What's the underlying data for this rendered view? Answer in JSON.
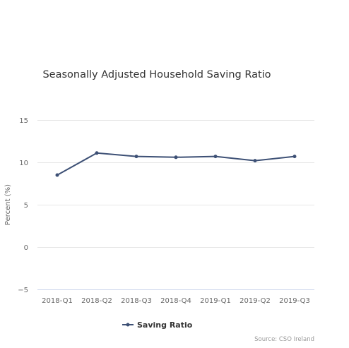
{
  "chart_data": {
    "type": "line",
    "title": "Seasonally Adjusted Household Saving Ratio",
    "xlabel": "",
    "ylabel": "Percent (%)",
    "categories": [
      "2018-Q1",
      "2018-Q2",
      "2018-Q3",
      "2018-Q4",
      "2019-Q1",
      "2019-Q2",
      "2019-Q3"
    ],
    "series": [
      {
        "name": "Saving Ratio",
        "values": [
          8.5,
          11.1,
          10.7,
          10.6,
          10.7,
          10.2,
          10.7
        ],
        "color": "#3d5075"
      }
    ],
    "yticks": [
      -5,
      0,
      5,
      10,
      15
    ],
    "ylim": [
      -5,
      15
    ],
    "grid": true,
    "legend_position": "bottom",
    "credit": "Source: CSO Ireland"
  }
}
